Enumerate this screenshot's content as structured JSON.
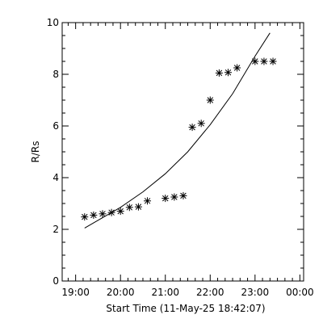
{
  "chart_data": {
    "type": "scatter",
    "title": "",
    "xlabel": "Start Time (11-May-25 18:42:07)",
    "ylabel": "R/Rs",
    "xlim": [
      "18:42",
      "00:05"
    ],
    "ylim": [
      0,
      10
    ],
    "x_ticks": [
      "19:00",
      "20:00",
      "21:00",
      "22:00",
      "23:00",
      "00:00"
    ],
    "y_ticks": [
      "0",
      "2",
      "4",
      "6",
      "8",
      "10"
    ],
    "grid": false,
    "marker": "asterisk",
    "series": [
      {
        "type": "scatter",
        "x": [
          "19:12",
          "19:24",
          "19:36",
          "19:48",
          "20:00",
          "20:12",
          "20:24",
          "20:36",
          "21:00",
          "21:12",
          "21:24",
          "21:36",
          "21:48",
          "22:00",
          "22:12",
          "22:24",
          "22:36",
          "23:00",
          "23:12",
          "23:24"
        ],
        "y": [
          2.48,
          2.55,
          2.6,
          2.65,
          2.7,
          2.85,
          2.87,
          3.1,
          3.2,
          3.25,
          3.3,
          5.95,
          6.1,
          7.0,
          8.05,
          8.07,
          8.25,
          8.5,
          8.5,
          8.5
        ]
      },
      {
        "type": "line",
        "x": [
          "19:12",
          "19:30",
          "20:00",
          "20:30",
          "21:00",
          "21:30",
          "22:00",
          "22:30",
          "23:00",
          "23:20"
        ],
        "y": [
          2.05,
          2.35,
          2.85,
          3.45,
          4.15,
          5.0,
          6.05,
          7.25,
          8.7,
          9.6
        ]
      }
    ]
  }
}
